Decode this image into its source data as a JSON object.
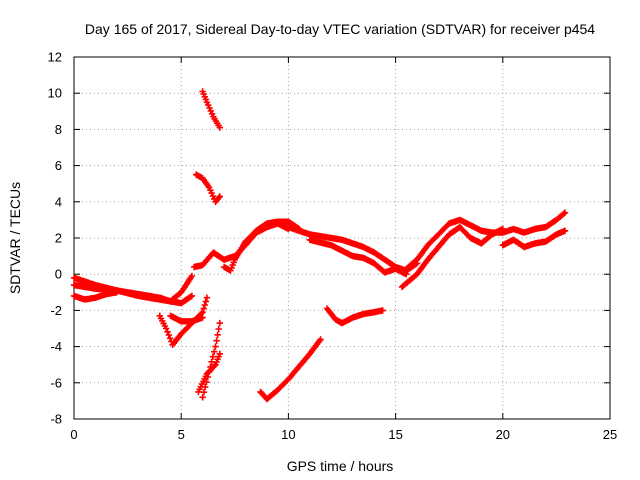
{
  "chart_data": {
    "type": "scatter",
    "title": "Day 165 of 2017, Sidereal Day-to-day VTEC variation (SDTVAR) for receiver p454",
    "xlabel": "GPS time / hours",
    "ylabel": "SDTVAR / TECUs",
    "xlim": [
      0,
      25
    ],
    "ylim": [
      -8,
      12
    ],
    "xticks": [
      0,
      5,
      10,
      15,
      20,
      25
    ],
    "yticks": [
      -8,
      -6,
      -4,
      -2,
      0,
      2,
      4,
      6,
      8,
      10,
      12
    ],
    "grid": true,
    "marker": "+",
    "color": "#ff0000",
    "series": [
      {
        "name": "arc-1",
        "x": [
          0,
          1,
          2,
          3,
          4,
          4.5,
          5,
          5.5
        ],
        "y": [
          -0.2,
          -0.6,
          -0.9,
          -1.1,
          -1.3,
          -1.5,
          -1.0,
          -0.1
        ]
      },
      {
        "name": "arc-2",
        "x": [
          0,
          1,
          2,
          3,
          4,
          5,
          5.5
        ],
        "y": [
          -0.6,
          -0.8,
          -0.9,
          -1.2,
          -1.4,
          -1.6,
          -1.2
        ]
      },
      {
        "name": "arc-3",
        "x": [
          0,
          0.5,
          1,
          1.5,
          2
        ],
        "y": [
          -1.2,
          -1.4,
          -1.3,
          -1.1,
          -1.0
        ]
      },
      {
        "name": "arc-4",
        "x": [
          4.0,
          4.3,
          4.6,
          5.0,
          5.5,
          6.0,
          6.2
        ],
        "y": [
          -2.3,
          -3.0,
          -3.9,
          -3.3,
          -2.7,
          -2.1,
          -1.3
        ]
      },
      {
        "name": "arc-5",
        "x": [
          4.5,
          5.0,
          5.5,
          6.0
        ],
        "y": [
          -2.3,
          -2.6,
          -2.6,
          -2.4
        ]
      },
      {
        "name": "arc-6",
        "x": [
          6.0,
          6.3,
          6.6,
          6.8
        ],
        "y": [
          -6.8,
          -5.4,
          -4.0,
          -2.7
        ]
      },
      {
        "name": "arc-7",
        "x": [
          5.8,
          6.2,
          6.6,
          6.8
        ],
        "y": [
          -6.5,
          -5.5,
          -5.0,
          -4.4
        ]
      },
      {
        "name": "arc-8",
        "x": [
          6.0,
          6.2,
          6.5,
          6.8
        ],
        "y": [
          10.1,
          9.5,
          8.7,
          8.1
        ]
      },
      {
        "name": "arc-9",
        "x": [
          5.7,
          6.0,
          6.3,
          6.6,
          6.8
        ],
        "y": [
          5.5,
          5.3,
          4.8,
          4.0,
          4.3
        ]
      },
      {
        "name": "arc-10",
        "x": [
          5.6,
          6.0,
          6.5,
          7.0,
          7.5,
          8.0,
          8.5,
          9.0,
          9.5,
          10.0
        ],
        "y": [
          0.4,
          0.5,
          1.2,
          0.8,
          1.0,
          1.6,
          2.3,
          2.6,
          2.8,
          2.5
        ]
      },
      {
        "name": "arc-11",
        "x": [
          7.0,
          7.3,
          7.5,
          8.0,
          8.5,
          9.0,
          9.5,
          10.0,
          10.5
        ],
        "y": [
          0.4,
          0.2,
          0.8,
          1.8,
          2.4,
          2.8,
          2.9,
          2.9,
          2.5
        ]
      },
      {
        "name": "arc-12",
        "x": [
          10.0,
          10.5,
          11,
          11.5,
          12,
          12.5,
          13,
          13.5,
          14,
          14.5,
          15,
          15.5,
          16
        ],
        "y": [
          2.6,
          2.4,
          2.2,
          2.1,
          2.0,
          1.9,
          1.7,
          1.5,
          1.2,
          0.8,
          0.4,
          0.2,
          0.6
        ]
      },
      {
        "name": "arc-13",
        "x": [
          11,
          12,
          12.5,
          13,
          13.5,
          14,
          14.5,
          15,
          15.5
        ],
        "y": [
          1.9,
          1.6,
          1.3,
          1.0,
          0.9,
          0.6,
          0.1,
          0.3,
          0.0
        ]
      },
      {
        "name": "arc-14",
        "x": [
          15.3,
          15.6,
          16,
          16.5,
          17,
          17.5,
          18,
          18.5,
          19,
          19.5,
          20
        ],
        "y": [
          -0.7,
          -0.4,
          0.0,
          0.8,
          1.5,
          2.2,
          2.6,
          2.0,
          1.7,
          2.2,
          2.5
        ]
      },
      {
        "name": "arc-15",
        "x": [
          15.5,
          16,
          16.5,
          17,
          17.5,
          18,
          18.5,
          19,
          19.5,
          20,
          20.5,
          21,
          21.5,
          22,
          22.5,
          22.9
        ],
        "y": [
          0.3,
          0.8,
          1.6,
          2.2,
          2.8,
          3.0,
          2.7,
          2.4,
          2.3,
          2.3,
          2.5,
          2.3,
          2.5,
          2.6,
          3.0,
          3.4
        ]
      },
      {
        "name": "arc-16",
        "x": [
          20,
          20.5,
          21,
          21.5,
          22,
          22.5,
          22.9
        ],
        "y": [
          1.6,
          1.9,
          1.5,
          1.7,
          1.8,
          2.2,
          2.4
        ]
      },
      {
        "name": "arc-17",
        "x": [
          8.7,
          9.0,
          9.5,
          10.0,
          10.5,
          11.0,
          11.5
        ],
        "y": [
          -6.5,
          -6.9,
          -6.4,
          -5.8,
          -5.1,
          -4.4,
          -3.6
        ]
      },
      {
        "name": "arc-18",
        "x": [
          11.8,
          12.2,
          12.5,
          13.0,
          13.5,
          14.0,
          14.4
        ],
        "y": [
          -1.9,
          -2.5,
          -2.7,
          -2.4,
          -2.2,
          -2.1,
          -2.0
        ]
      }
    ]
  }
}
